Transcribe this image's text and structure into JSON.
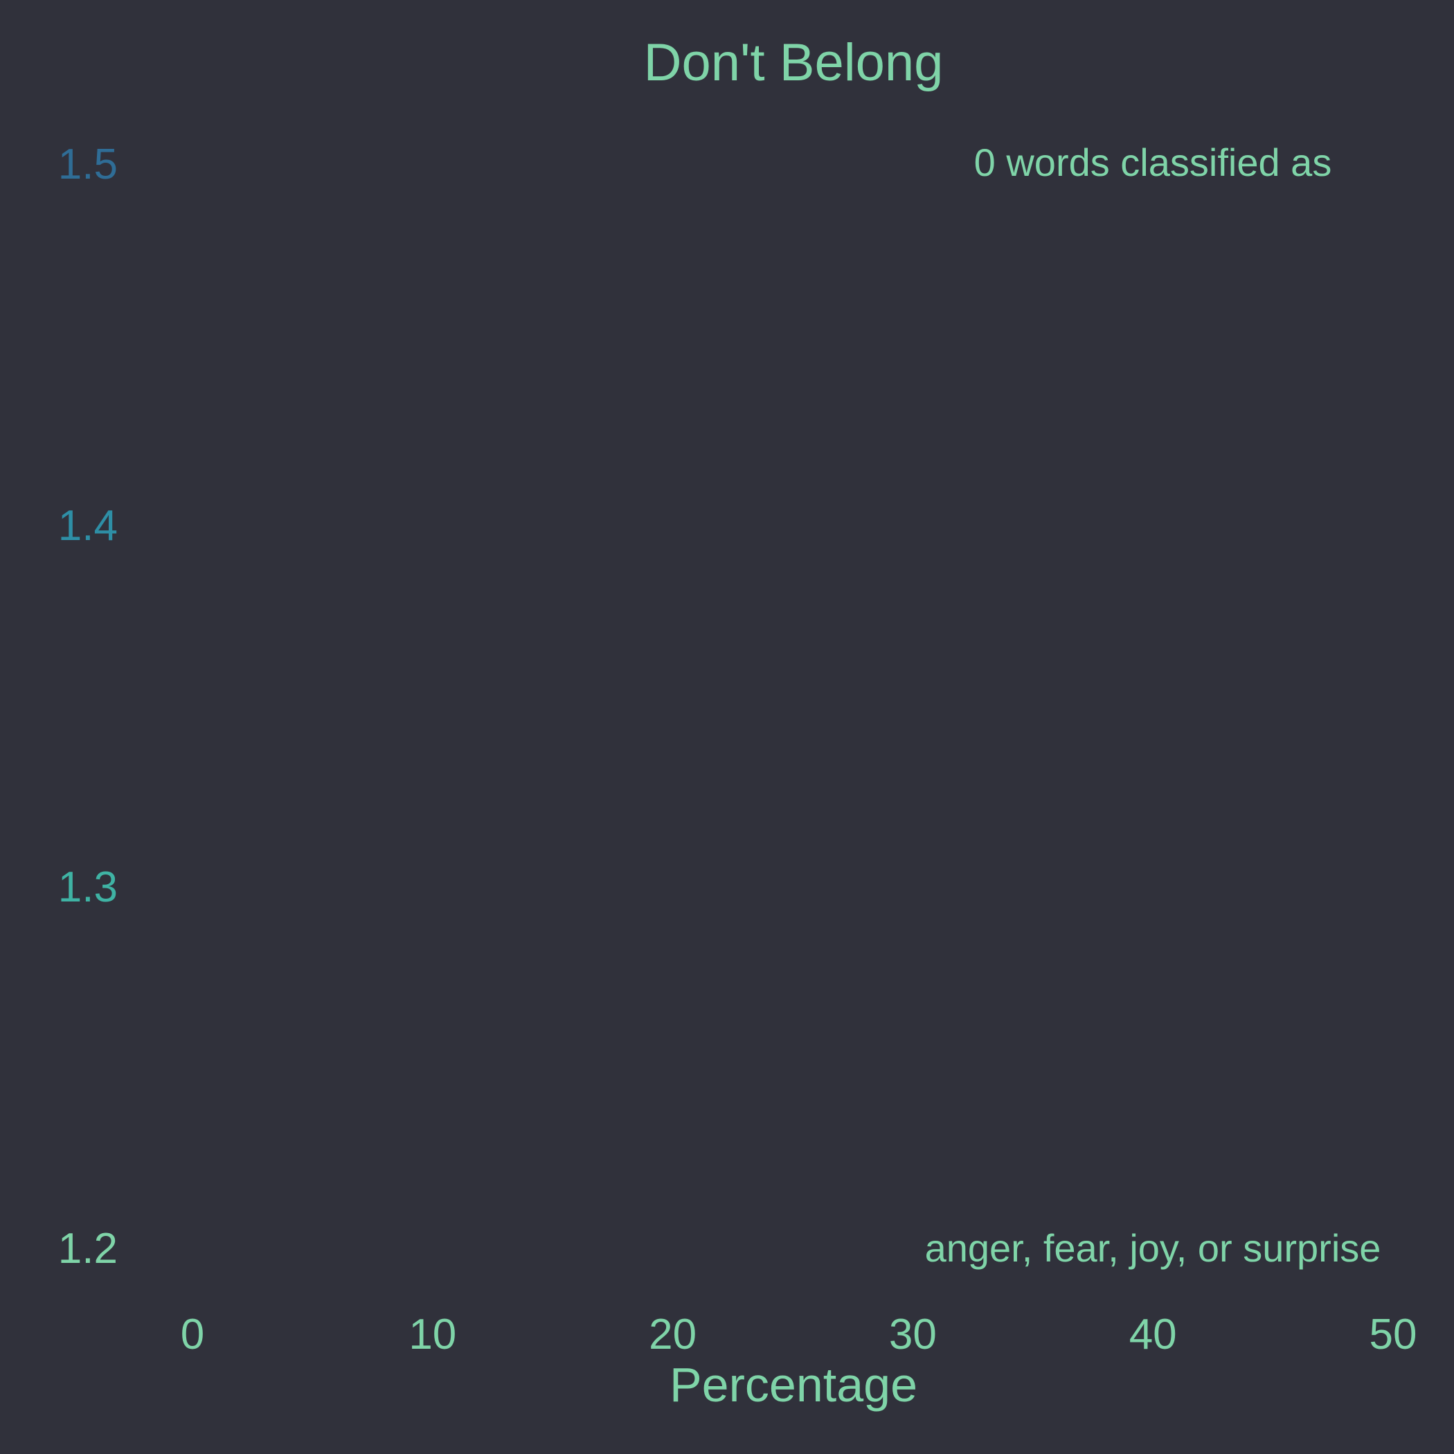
{
  "chart_data": {
    "type": "bar",
    "title": "Don't Belong",
    "xlabel": "Percentage",
    "ylabel": "",
    "xlim": [
      0,
      50
    ],
    "ylim": [
      1.2,
      1.5
    ],
    "x_ticks": [
      "0",
      "10",
      "20",
      "30",
      "40",
      "50"
    ],
    "y_ticks": [
      "1.2",
      "1.3",
      "1.4",
      "1.5"
    ],
    "categories": [],
    "values": [],
    "grid": false,
    "annotations": [
      {
        "text": "0 words classified as",
        "position": "top-right"
      },
      {
        "text": "anger, fear, joy, or surprise",
        "position": "bottom-right"
      }
    ],
    "colors": {
      "background": "#30313b",
      "text": "#7fd4a8",
      "y_tick_gradient": [
        "#7fd4a8",
        "#3fb3a4",
        "#2e8fa6",
        "#2f6d96"
      ]
    }
  }
}
